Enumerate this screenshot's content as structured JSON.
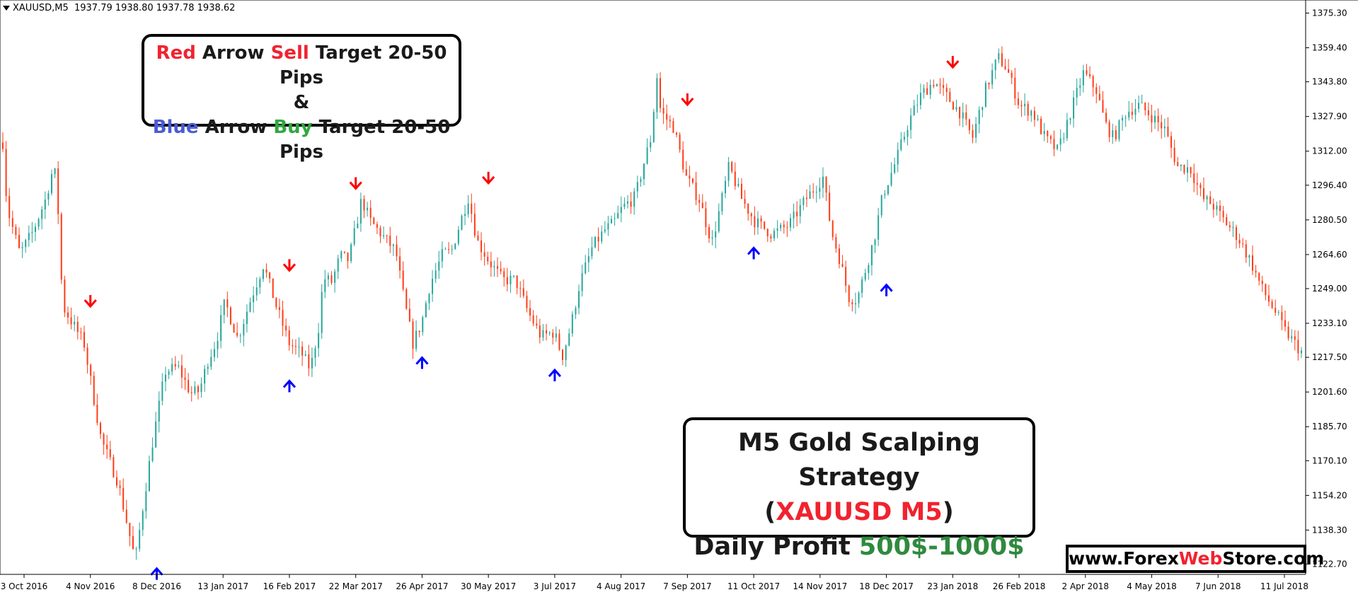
{
  "header": {
    "symbol": "XAUUSD,M5",
    "ohlc": "1937.79 1938.80 1937.78 1938.62"
  },
  "box_top": {
    "line1": {
      "a": "Red",
      "b": " Arrow ",
      "c": "Sell",
      "d": " Target 20-50 Pips"
    },
    "line2": "&",
    "line3": {
      "a": "Blue",
      "b": " Arrow ",
      "c": "Buy",
      "d": " Target 20-50 Pips"
    }
  },
  "box_bottom": {
    "line1": "M5 Gold Scalping Strategy",
    "line2": {
      "open": "(",
      "symbol": "XAUUSD M5",
      "close": ")"
    },
    "line3": {
      "label": "Daily Profit ",
      "value": "500$-1000$"
    }
  },
  "watermark": {
    "prefix": "www.Forex",
    "mid": "Web",
    "suffix": "Store.com"
  },
  "colors": {
    "bull": "#26a69a",
    "bear": "#ff3b16",
    "sell_arrow": "#ff0000",
    "buy_arrow": "#0000ff",
    "axis": "#000000"
  },
  "chart_data": {
    "type": "candlestick",
    "y_axis": {
      "ticks": [
        "1375.30",
        "1359.40",
        "1343.80",
        "1327.90",
        "1312.00",
        "1296.40",
        "1280.50",
        "1264.60",
        "1249.00",
        "1233.10",
        "1217.50",
        "1201.60",
        "1185.70",
        "1170.10",
        "1154.20",
        "1138.30",
        "1122.70"
      ],
      "range": [
        1118.0,
        1380.0
      ]
    },
    "x_axis": {
      "ticks": [
        "3 Oct 2016",
        "4 Nov 2016",
        "8 Dec 2016",
        "13 Jan 2017",
        "16 Feb 2017",
        "22 Mar 2017",
        "26 Apr 2017",
        "30 May 2017",
        "3 Jul 2017",
        "4 Aug 2017",
        "7 Sep 2017",
        "11 Oct 2017",
        "14 Nov 2017",
        "18 Dec 2017",
        "23 Jan 2018",
        "26 Feb 2018",
        "2 Apr 2018",
        "4 May 2018",
        "7 Jun 2018",
        "11 Jul 2018"
      ],
      "bar_count": 400
    },
    "close_path": [
      [
        0,
        1316
      ],
      [
        2,
        1286
      ],
      [
        8,
        1265
      ],
      [
        14,
        1275
      ],
      [
        20,
        1290
      ],
      [
        24,
        1306
      ],
      [
        26,
        1283
      ],
      [
        28,
        1241
      ],
      [
        38,
        1224
      ],
      [
        46,
        1180
      ],
      [
        54,
        1160
      ],
      [
        62,
        1124
      ],
      [
        66,
        1152
      ],
      [
        70,
        1178
      ],
      [
        76,
        1211
      ],
      [
        82,
        1213
      ],
      [
        88,
        1201
      ],
      [
        92,
        1202
      ],
      [
        96,
        1216
      ],
      [
        100,
        1225
      ],
      [
        104,
        1243
      ],
      [
        110,
        1226
      ],
      [
        116,
        1244
      ],
      [
        122,
        1260
      ],
      [
        128,
        1241
      ],
      [
        134,
        1224
      ],
      [
        140,
        1219
      ],
      [
        144,
        1212
      ],
      [
        148,
        1232
      ],
      [
        150,
        1254
      ],
      [
        154,
        1252
      ],
      [
        158,
        1264
      ],
      [
        162,
        1262
      ],
      [
        168,
        1290
      ],
      [
        172,
        1280
      ],
      [
        178,
        1273
      ],
      [
        184,
        1266
      ],
      [
        188,
        1243
      ],
      [
        192,
        1224
      ],
      [
        196,
        1233
      ],
      [
        200,
        1251
      ],
      [
        206,
        1265
      ],
      [
        210,
        1266
      ],
      [
        214,
        1279
      ],
      [
        218,
        1291
      ],
      [
        222,
        1271
      ],
      [
        228,
        1261
      ],
      [
        234,
        1253
      ],
      [
        240,
        1253
      ],
      [
        246,
        1238
      ],
      [
        252,
        1227
      ],
      [
        258,
        1229
      ],
      [
        262,
        1218
      ],
      [
        266,
        1232
      ],
      [
        270,
        1251
      ],
      [
        276,
        1268
      ],
      [
        282,
        1276
      ],
      [
        286,
        1279
      ],
      [
        290,
        1286
      ],
      [
        296,
        1291
      ],
      [
        300,
        1306
      ],
      [
        304,
        1320
      ],
      [
        306,
        1349
      ],
      [
        308,
        1330
      ],
      [
        314,
        1323
      ],
      [
        320,
        1300
      ],
      [
        326,
        1290
      ],
      [
        332,
        1270
      ],
      [
        336,
        1287
      ],
      [
        340,
        1305
      ],
      [
        346,
        1290
      ],
      [
        352,
        1280
      ],
      [
        360,
        1274
      ],
      [
        368,
        1278
      ],
      [
        376,
        1290
      ],
      [
        384,
        1300
      ],
      [
        388,
        1275
      ],
      [
        392,
        1262
      ],
      [
        396,
        1245
      ],
      [
        400,
        1244
      ],
      [
        404,
        1258
      ],
      [
        408,
        1272
      ],
      [
        412,
        1292
      ],
      [
        418,
        1307
      ],
      [
        424,
        1325
      ],
      [
        430,
        1338
      ],
      [
        436,
        1344
      ],
      [
        442,
        1337
      ],
      [
        448,
        1330
      ],
      [
        454,
        1318
      ],
      [
        460,
        1340
      ],
      [
        466,
        1355
      ],
      [
        470,
        1350
      ],
      [
        476,
        1333
      ],
      [
        482,
        1330
      ],
      [
        488,
        1318
      ],
      [
        494,
        1312
      ],
      [
        500,
        1330
      ],
      [
        506,
        1348
      ],
      [
        512,
        1340
      ],
      [
        516,
        1325
      ],
      [
        520,
        1318
      ],
      [
        526,
        1330
      ],
      [
        532,
        1333
      ],
      [
        538,
        1328
      ],
      [
        544,
        1322
      ],
      [
        550,
        1305
      ],
      [
        556,
        1304
      ],
      [
        562,
        1290
      ],
      [
        566,
        1288
      ],
      [
        572,
        1280
      ],
      [
        578,
        1273
      ],
      [
        584,
        1262
      ],
      [
        590,
        1248
      ],
      [
        596,
        1238
      ],
      [
        600,
        1230
      ],
      [
        604,
        1225
      ],
      [
        608,
        1220
      ]
    ],
    "sell_arrows": [
      "4 Nov 2016",
      "16 Feb 2017",
      "22 Mar 2017",
      "30 May 2017",
      "7 Sep 2017",
      "23 Jan 2018"
    ],
    "buy_arrows": [
      "8 Dec 2016",
      "16 Feb 2017",
      "26 Apr 2017",
      "3 Jul 2017",
      "11 Oct 2017",
      "18 Dec 2017"
    ]
  }
}
